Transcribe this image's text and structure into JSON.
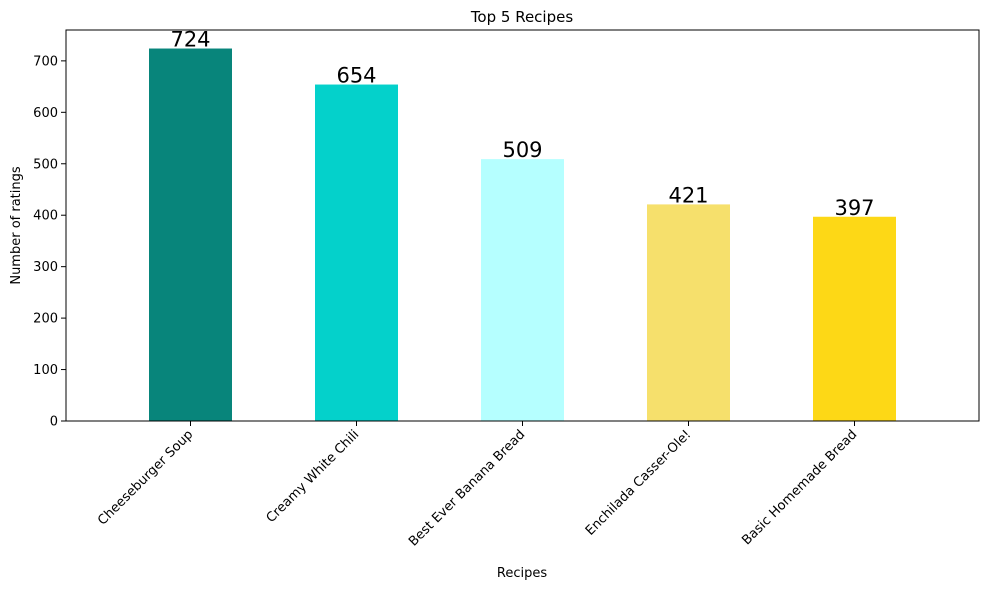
{
  "chart_data": {
    "type": "bar",
    "title": "Top 5 Recipes",
    "xlabel": "Recipes",
    "ylabel": "Number of ratings",
    "categories": [
      "Cheeseburger Soup",
      "Creamy White Chili",
      "Best Ever Banana Bread",
      "Enchilada Casser-Ole!",
      "Basic Homemade Bread"
    ],
    "values": [
      724,
      654,
      509,
      421,
      397
    ],
    "colors": [
      "#08857b",
      "#04d1cb",
      "#b5ffff",
      "#f6e06c",
      "#fdd816"
    ],
    "ylim": [
      0,
      760
    ],
    "yticks": [
      0,
      100,
      200,
      300,
      400,
      500,
      600,
      700
    ],
    "grid": false,
    "legend": "none"
  }
}
